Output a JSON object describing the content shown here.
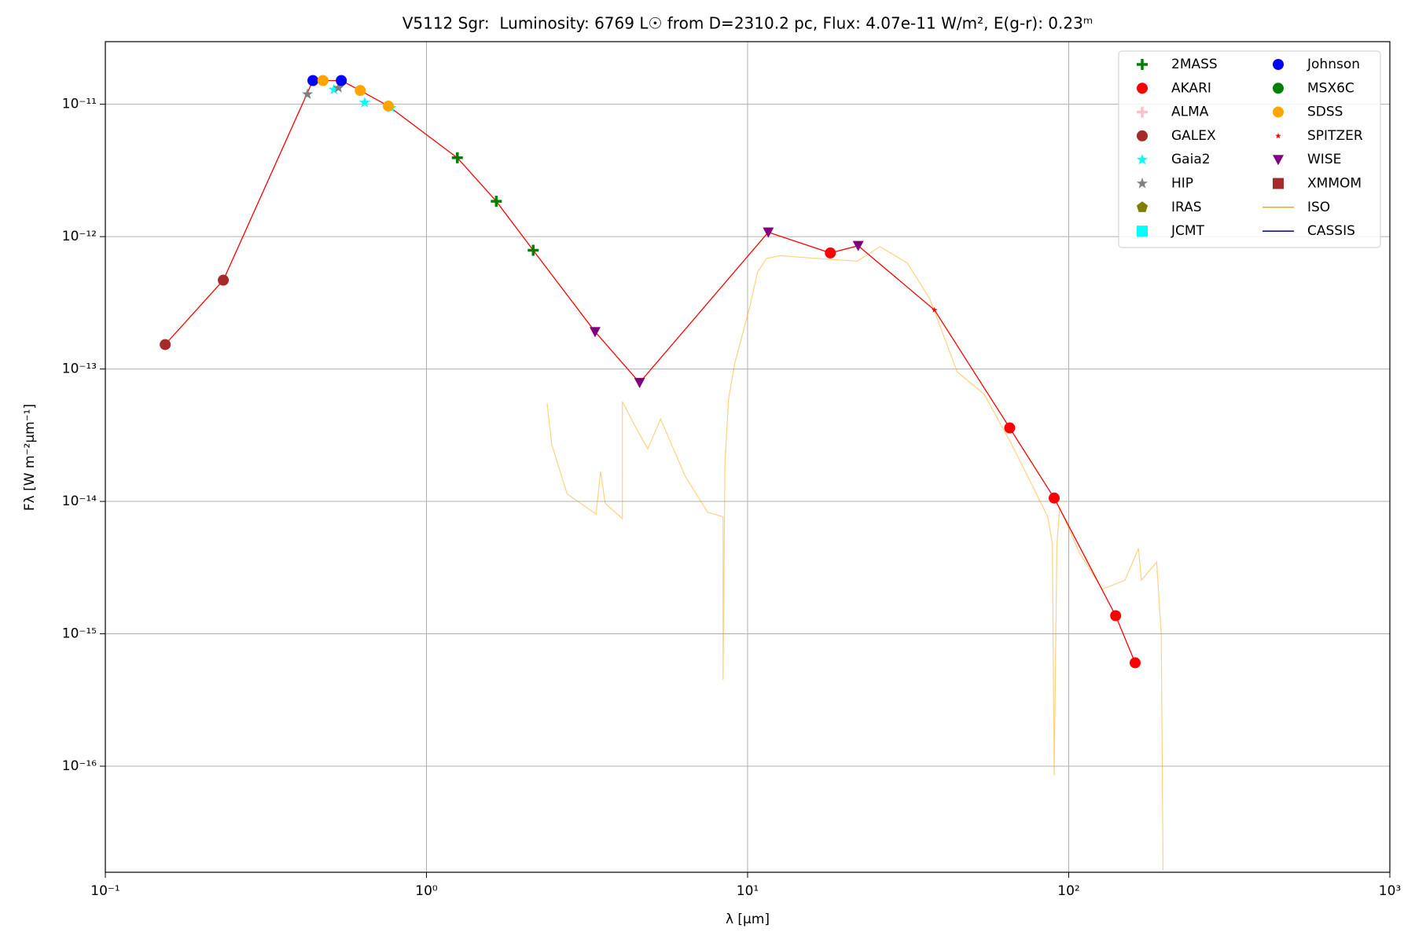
{
  "chart_data": {
    "type": "scatter",
    "title": "V5112 Sgr:  Luminosity: 6769 L☉ from D=2310.2 pc, Flux: 4.07e-11 W/m², E(g-r): 0.23ᵐ",
    "x_label": "λ [μm]",
    "y_label": "Fλ [W m⁻²μm⁻¹]",
    "xscale": "log",
    "yscale": "log",
    "grid": true,
    "legend": "upper right",
    "xlim": [
      0.1,
      1000
    ],
    "ylim": [
      1.58e-17,
      2.97e-11
    ],
    "xticks": [
      {
        "value": 0.1,
        "label": "10⁻¹"
      },
      {
        "value": 1,
        "label": "10⁰"
      },
      {
        "value": 10,
        "label": "10¹"
      },
      {
        "value": 100,
        "label": "10²"
      },
      {
        "value": 1000,
        "label": "10³"
      }
    ],
    "yticks": [
      {
        "value": 1e-16,
        "label": "10⁻¹⁶"
      },
      {
        "value": 1e-15,
        "label": "10⁻¹⁵"
      },
      {
        "value": 1e-14,
        "label": "10⁻¹⁴"
      },
      {
        "value": 1e-13,
        "label": "10⁻¹³"
      },
      {
        "value": 1e-12,
        "label": "10⁻¹²"
      },
      {
        "value": 1e-11,
        "label": "10⁻¹¹"
      }
    ],
    "series": [
      {
        "name": "2MASS",
        "color": "#008000",
        "marker": "plus",
        "x": [
          1.248,
          1.65,
          2.15
        ],
        "values": [
          3.94e-12,
          1.85e-12,
          7.89e-13
        ]
      },
      {
        "name": "AKARI",
        "color": "#ff0000",
        "marker": "circle",
        "x": [
          18.1,
          65.5,
          90.1,
          140,
          161
        ],
        "values": [
          7.53e-13,
          3.59e-14,
          1.06e-14,
          1.37e-15,
          6.04e-16
        ]
      },
      {
        "name": "ALMA",
        "color": "#ffc0cb",
        "marker": "plus",
        "x": [],
        "values": []
      },
      {
        "name": "GALEX",
        "color": "#a52a2a",
        "marker": "circle",
        "x": [
          0.1536,
          0.233
        ],
        "values": [
          1.53e-13,
          4.69e-13
        ]
      },
      {
        "name": "Gaia2",
        "color": "#00ffff",
        "marker": "star",
        "x": [
          0.515,
          0.642,
          0.776
        ],
        "values": [
          1.29e-11,
          1.03e-11,
          9.39e-12
        ]
      },
      {
        "name": "HIP",
        "color": "#808080",
        "marker": "star",
        "x": [
          0.426,
          0.532
        ],
        "values": [
          1.19e-11,
          1.33e-11
        ]
      },
      {
        "name": "IRAS",
        "color": "#808000",
        "marker": "pentagon",
        "x": [],
        "values": []
      },
      {
        "name": "JCMT",
        "color": "#00ffff",
        "marker": "square",
        "x": [],
        "values": []
      },
      {
        "name": "Johnson",
        "color": "#0000ff",
        "marker": "circle",
        "x": [
          0.443,
          0.543
        ],
        "values": [
          1.51e-11,
          1.51e-11
        ]
      },
      {
        "name": "MSX6C",
        "color": "#008000",
        "marker": "circle",
        "x": [],
        "values": []
      },
      {
        "name": "SDSS",
        "color": "#ffa500",
        "marker": "circle",
        "x": [
          0.476,
          0.622,
          0.761
        ],
        "values": [
          1.51e-11,
          1.27e-11,
          9.69e-12
        ]
      },
      {
        "name": "SPITZER",
        "color": "#ff0000",
        "marker": "smallstar",
        "x": [
          38.2
        ],
        "values": [
          2.79e-13
        ]
      },
      {
        "name": "WISE",
        "color": "#800080",
        "marker": "triangle-down",
        "x": [
          3.35,
          4.61,
          11.6,
          22.1
        ],
        "values": [
          1.91e-13,
          7.89e-14,
          1.08e-12,
          8.54e-13
        ]
      },
      {
        "name": "XMMOM",
        "color": "#a52a2a",
        "marker": "square",
        "x": [],
        "values": []
      },
      {
        "name": "ISO",
        "color": "#ffa500",
        "marker": "line",
        "x": [
          2.376,
          2.454,
          2.741,
          3.374,
          3.485,
          3.602,
          4.074,
          4.074,
          4.464,
          4.888,
          5.357,
          6.383,
          7.511,
          8.388,
          8.388,
          8.5,
          8.724,
          9.13,
          9.616,
          10.13,
          10.74,
          11.47,
          12.64,
          16.39,
          21.97,
          25.85,
          31.42,
          36.97,
          44.94,
          54.62,
          66.37,
          75.59,
          86.1,
          88.95,
          90.1,
          91.9,
          93.7,
          108.1,
          127.2,
          149.6,
          165.0,
          168.3,
          187.9,
          194.1,
          196.7
        ],
        "values": [
          5.5e-14,
          2.7e-14,
          1.14e-14,
          8.02e-15,
          1.68e-14,
          9.69e-15,
          7.41e-15,
          5.67e-14,
          3.7e-14,
          2.49e-14,
          4.2e-14,
          1.56e-14,
          8.28e-15,
          7.65e-15,
          4.48e-16,
          1.97e-14,
          5.95e-14,
          1.12e-13,
          1.79e-13,
          2.88e-13,
          5.41e-13,
          6.85e-13,
          7.18e-13,
          6.85e-13,
          6.53e-13,
          8.41e-13,
          6.33e-13,
          3.37e-13,
          9.53e-14,
          6.43e-14,
          2.7e-14,
          1.44e-14,
          7.65e-15,
          4.77e-15,
          8.55e-17,
          4.77e-15,
          8.95e-15,
          4.07e-15,
          2.17e-15,
          2.54e-15,
          4.41e-15,
          2.54e-15,
          3.48e-15,
          9.84e-16,
          1.63e-17
        ]
      },
      {
        "name": "CASSIS",
        "color": "#00008b",
        "marker": "line",
        "x": [],
        "values": []
      },
      {
        "color": "#ff0000",
        "marker": "line",
        "x": [
          0.1536,
          0.233,
          0.443,
          0.476,
          0.543,
          0.622,
          0.761,
          1.248,
          1.65,
          2.15,
          3.35,
          4.61,
          11.6,
          18.1,
          22.1,
          38.2,
          65.5,
          90.1,
          140,
          161
        ],
        "values": [
          1.53e-13,
          4.69e-13,
          1.51e-11,
          1.51e-11,
          1.51e-11,
          1.27e-11,
          9.69e-12,
          3.94e-12,
          1.85e-12,
          7.89e-13,
          1.91e-13,
          7.89e-14,
          1.08e-12,
          7.53e-13,
          8.54e-13,
          2.79e-13,
          3.59e-14,
          1.06e-14,
          1.37e-15,
          6.04e-16
        ]
      }
    ]
  }
}
